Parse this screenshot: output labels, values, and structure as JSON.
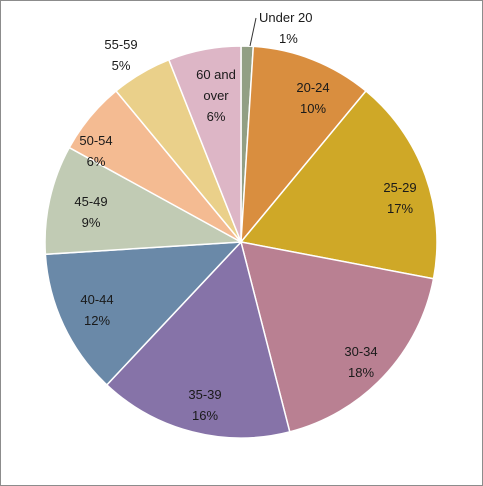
{
  "chart_data": {
    "type": "pie",
    "title": "",
    "legend": "none",
    "slices": [
      {
        "category": "Under 20",
        "value": 1,
        "label": "1%",
        "color": "#929F84"
      },
      {
        "category": "20-24",
        "value": 10,
        "label": "10%",
        "color": "#D98E3F"
      },
      {
        "category": "25-29",
        "value": 17,
        "label": "17%",
        "color": "#CFA827"
      },
      {
        "category": "30-34",
        "value": 18,
        "label": "18%",
        "color": "#B98092"
      },
      {
        "category": "35-39",
        "value": 16,
        "label": "16%",
        "color": "#8673A8"
      },
      {
        "category": "40-44",
        "value": 12,
        "label": "12%",
        "color": "#6A89A8"
      },
      {
        "category": "45-49",
        "value": 9,
        "label": "9%",
        "color": "#C1CBB4"
      },
      {
        "category": "50-54",
        "value": 6,
        "label": "6%",
        "color": "#F4BB92"
      },
      {
        "category": "55-59",
        "value": 5,
        "label": "5%",
        "color": "#EAD08A"
      },
      {
        "category": "60 and over",
        "value": 6,
        "label": "6%",
        "color": "#DDB6C6"
      }
    ]
  }
}
